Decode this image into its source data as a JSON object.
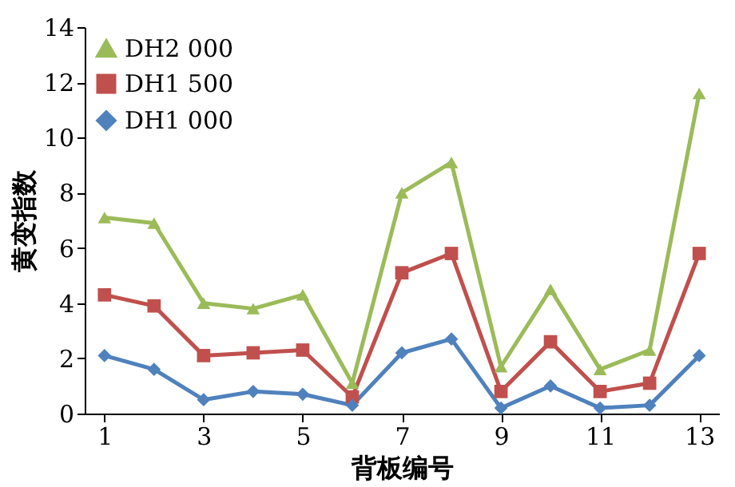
{
  "chart_data": {
    "type": "line",
    "xlabel": "背板编号",
    "ylabel": "黄变指数",
    "x": [
      1,
      2,
      3,
      4,
      5,
      6,
      7,
      8,
      9,
      10,
      11,
      12,
      13
    ],
    "series": [
      {
        "name": "DH2 000",
        "color": "#9bbb59",
        "marker": "triangle",
        "values": [
          7.1,
          6.9,
          4.0,
          3.8,
          4.3,
          1.1,
          8.0,
          9.1,
          1.7,
          4.5,
          1.6,
          2.3,
          11.6
        ]
      },
      {
        "name": "DH1 500",
        "color": "#c0504d",
        "marker": "square",
        "values": [
          4.3,
          3.9,
          2.1,
          2.2,
          2.3,
          0.6,
          5.1,
          5.8,
          0.8,
          2.6,
          0.8,
          1.1,
          5.8
        ]
      },
      {
        "name": "DH1 000",
        "color": "#4f81bd",
        "marker": "diamond",
        "values": [
          2.1,
          1.6,
          0.5,
          0.8,
          0.7,
          0.3,
          2.2,
          2.7,
          0.2,
          1.0,
          0.2,
          0.3,
          2.1
        ]
      }
    ],
    "xlim": [
      0.6,
      13.4
    ],
    "xticks": [
      1,
      3,
      5,
      7,
      9,
      11,
      13
    ],
    "ylim": [
      0,
      14
    ],
    "yticks": [
      0,
      2,
      4,
      6,
      8,
      10,
      12,
      14
    ],
    "grid": false,
    "legend": "top left",
    "line_style": "solid"
  }
}
